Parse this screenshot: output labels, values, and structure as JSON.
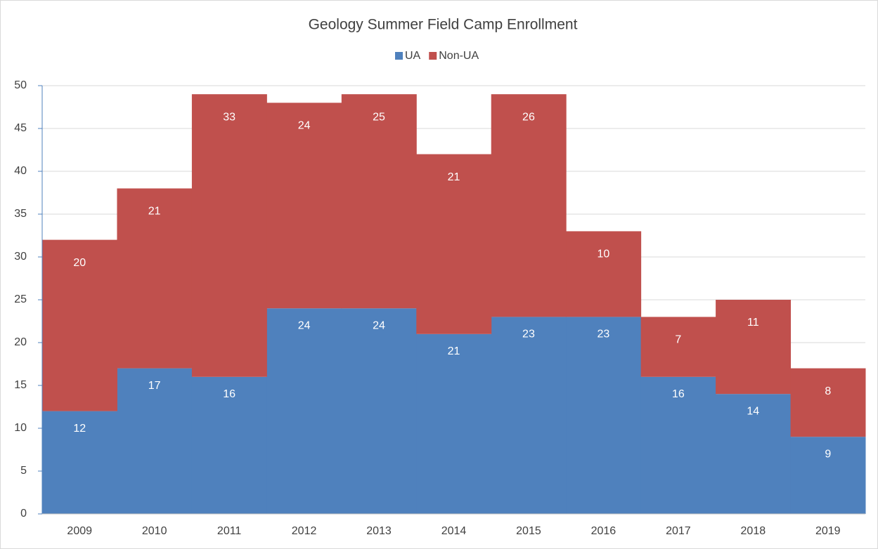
{
  "chart_data": {
    "type": "bar",
    "stacked": true,
    "title": "Geology Summer Field Camp Enrollment",
    "categories": [
      "2009",
      "2010",
      "2011",
      "2012",
      "2013",
      "2014",
      "2015",
      "2016",
      "2017",
      "2018",
      "2019"
    ],
    "series": [
      {
        "name": "UA",
        "color": "#4f81bd",
        "values": [
          12,
          17,
          16,
          24,
          24,
          21,
          23,
          23,
          16,
          14,
          9
        ]
      },
      {
        "name": "Non-UA",
        "color": "#c0504d",
        "values": [
          20,
          21,
          33,
          24,
          25,
          21,
          26,
          10,
          7,
          11,
          8
        ]
      }
    ],
    "ylim": [
      0,
      50
    ],
    "yticks": [
      0,
      5,
      10,
      15,
      20,
      25,
      30,
      35,
      40,
      45,
      50
    ],
    "grid": true,
    "legend": "top"
  }
}
